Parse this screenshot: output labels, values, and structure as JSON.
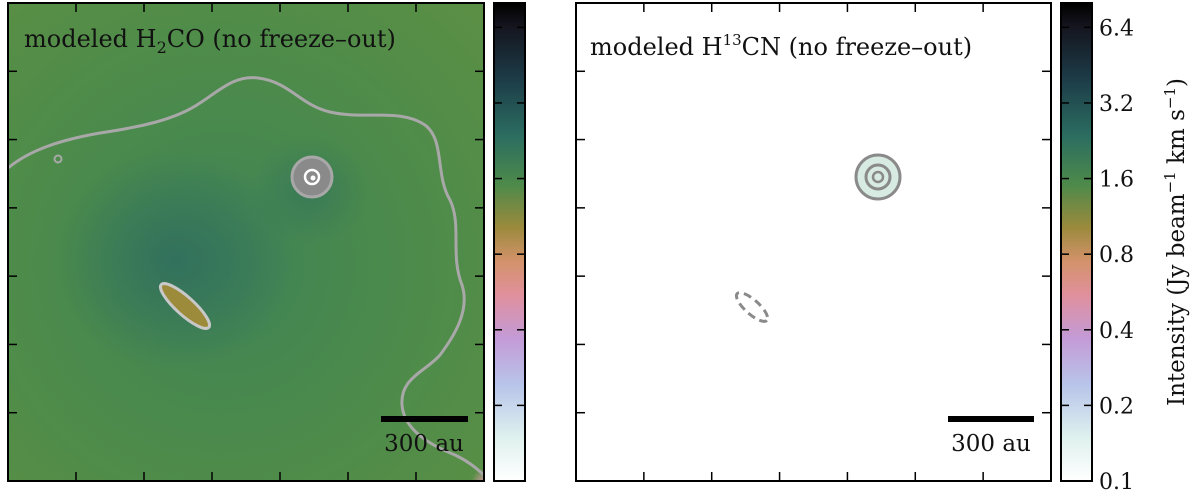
{
  "chart_data": [
    {
      "type": "heatmap",
      "title": "modeled H₂CO (no freeze–out)",
      "title_parts": {
        "prefix": "modeled H",
        "sub": "2",
        "suffix": "CO (no freeze–out)"
      },
      "scalebar_label": "300 au",
      "background_level": 1.6,
      "features": [
        {
          "kind": "compact source",
          "level": 0.8
        },
        {
          "kind": "elongated source",
          "level": 0.8
        }
      ],
      "contour_color": "#a8a8a8",
      "xlabel": "",
      "ylabel": ""
    },
    {
      "type": "heatmap",
      "title": "modeled H¹³CN (no freeze–out)",
      "title_parts": {
        "prefix": "modeled H",
        "sup": "13",
        "suffix": "CN (no freeze–out)"
      },
      "scalebar_label": "300 au",
      "background_level": 0.1,
      "features": [
        {
          "kind": "compact source",
          "level": 0.8
        },
        {
          "kind": "elongated source",
          "level": 0.1,
          "dashed_contour": true
        }
      ],
      "contour_color": "#8a8a8a",
      "xlabel": "",
      "ylabel": ""
    }
  ],
  "colorbar": {
    "label_main": "Intensity (Jy beam",
    "label_sup1": "−1",
    "label_mid": " km s",
    "label_sup2": "−1",
    "label_end": ")",
    "scale": "log",
    "ticks": [
      "0.1",
      "0.2",
      "0.4",
      "0.8",
      "1.6",
      "3.2",
      "6.4"
    ],
    "tick_values": [
      0.1,
      0.2,
      0.4,
      0.8,
      1.6,
      3.2,
      6.4
    ],
    "range": [
      0.1,
      8.0
    ],
    "colors": {
      "low": "#ffffff",
      "stops": [
        "#ffffff",
        "#dff1ee",
        "#b8c5ea",
        "#c49ad6",
        "#e0909c",
        "#d3926a",
        "#9b8a3c",
        "#4d8a4a",
        "#2c6e60",
        "#1c3c48",
        "#15151f",
        "#000000"
      ]
    }
  }
}
